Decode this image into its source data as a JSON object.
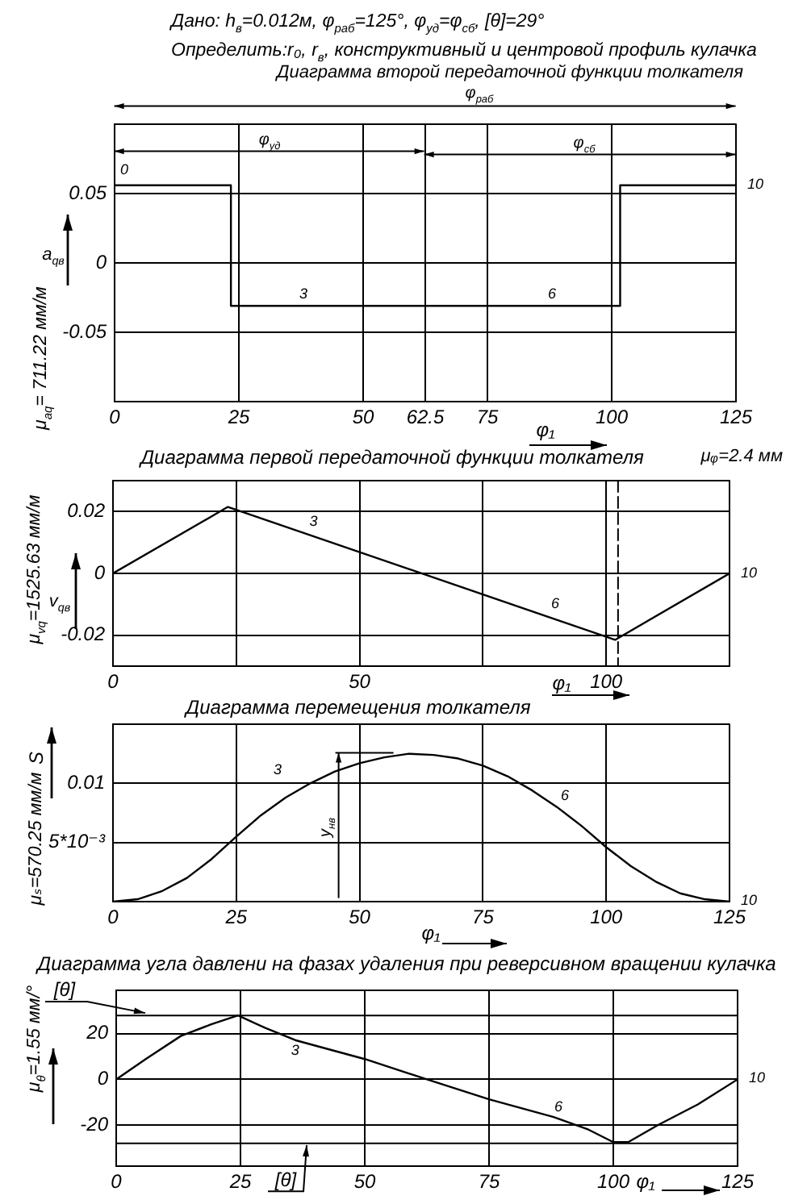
{
  "chart_data": [
    {
      "type": "step",
      "title": "Диаграмма второй передаточной функции толкателя",
      "xlabel": "φ₁",
      "ylabel": "μ$_{aq}$= 711.22 мм/м",
      "x": [
        0,
        23.4,
        101.7,
        125
      ],
      "values": [
        0.056,
        -0.031,
        0.056,
        0.056
      ],
      "color": "#000000",
      "xlim": [
        0,
        125
      ],
      "xticks": [
        0,
        25,
        50,
        62.5,
        75,
        100,
        125
      ],
      "ylim": [
        -0.1,
        0.1
      ],
      "yticks": [
        -0.05,
        0,
        0.05
      ],
      "grid": true,
      "annotations": [
        "Дано: h$_{в}$=0.012м, φ$_{раб}$=125°, φ$_{уд}$=φ$_{сб}$, [θ]=29°",
        "Определить:r₀, r$_{в}$, конструктивный и центровой профиль кулачка",
        "μᵩ=2.4 мм",
        "a$_{qв}$",
        "φ$_{раб}$",
        "φ$_{уд}$",
        "φ$_{сб}$",
        {
          "text": "0",
          "x": 0,
          "y": 0.056
        },
        {
          "text": "3",
          "x": 38,
          "y": -0.031
        },
        {
          "text": "6",
          "x": 88,
          "y": -0.031
        },
        {
          "text": "10",
          "x": 125,
          "y": 0.056
        }
      ]
    },
    {
      "type": "line",
      "title": "Диаграмма первой передаточной функции толкателя",
      "xlabel": "φ₁",
      "ylabel": "μ$_{vq}$=1525.63 мм/м",
      "x": [
        0,
        23.3,
        101.8,
        125
      ],
      "values": [
        0,
        0.0215,
        -0.0215,
        0
      ],
      "color": "#000000",
      "xlim": [
        0,
        125
      ],
      "xticks": [
        0,
        {
          "value": 25,
          "label": null
        },
        50,
        {
          "value": 75,
          "label": null
        },
        100
      ],
      "ylim": [
        -0.03,
        0.03
      ],
      "yticks": [
        -0.02,
        0,
        0.02
      ],
      "grid": true,
      "ref_lines": [
        {
          "axis": "x",
          "value": 102.4,
          "line_style": "dashed"
        }
      ],
      "annotations": [
        "v$_{qв}$",
        {
          "text": "3",
          "x": 40,
          "y": 0.0124
        },
        {
          "text": "6",
          "x": 89,
          "y": -0.0145
        },
        {
          "text": "10",
          "x": 125,
          "y": 0
        }
      ]
    },
    {
      "type": "line",
      "title": "Диаграмма перемещения толкателя",
      "xlabel": "φ₁",
      "ylabel": "μₛ=570.25 мм/м",
      "x": [
        0,
        5,
        10,
        15,
        20,
        25,
        30,
        35,
        40,
        45,
        50,
        55,
        60,
        65,
        70,
        75,
        80,
        85,
        90,
        95,
        100,
        105,
        110,
        115,
        120,
        125
      ],
      "values": [
        0,
        0.0002,
        0.0009,
        0.002,
        0.0036,
        0.0055,
        0.0073,
        0.0088,
        0.01,
        0.011,
        0.0117,
        0.0122,
        0.0125,
        0.0124,
        0.0121,
        0.0115,
        0.0106,
        0.0094,
        0.008,
        0.0064,
        0.0046,
        0.003,
        0.0017,
        0.0007,
        0.0002,
        0
      ],
      "color": "#000000",
      "xlim": [
        0,
        125
      ],
      "xticks": [
        0,
        25,
        50,
        75,
        100,
        125
      ],
      "ylim": [
        0,
        0.015
      ],
      "yticks": [
        {
          "value": 0.005,
          "label": "5*10⁻³"
        },
        0.01
      ],
      "grid": true,
      "annotations": [
        "S",
        "y$_{нв}$",
        {
          "text": "3",
          "x": 37,
          "y": 0.0093
        },
        {
          "text": "6",
          "x": 90,
          "y": 0.008
        },
        {
          "text": "10",
          "x": 125,
          "y": 0
        }
      ]
    },
    {
      "type": "line",
      "title": "Диаграмма угла давлени на фазах удаления при реверсивном вращении кулачка",
      "xlabel": "φ₁",
      "ylabel": "μ$_{θ}$=1.55 мм/°",
      "x": [
        0,
        6,
        13,
        19,
        24.5,
        30,
        36,
        40,
        50,
        62.5,
        75,
        88,
        95,
        100,
        103,
        109,
        117,
        125
      ],
      "values": [
        0,
        9,
        19,
        24,
        28,
        22.5,
        17.2,
        14.8,
        8.9,
        0,
        -8.7,
        -16.5,
        -22,
        -27.5,
        -27.5,
        -20,
        -11,
        0
      ],
      "color": "#000000",
      "xlim": [
        0,
        125
      ],
      "xticks": [
        0,
        25,
        50,
        75,
        100,
        125
      ],
      "ylim": [
        -38,
        39
      ],
      "yticks": [
        -20,
        0,
        20
      ],
      "grid": true,
      "ref_lines": [
        {
          "axis": "y",
          "value": 28,
          "label": "[θ]"
        },
        {
          "axis": "y",
          "value": -28,
          "label": "[θ]"
        }
      ],
      "annotations": [
        {
          "text": "3",
          "x": 36,
          "y": 17.2
        },
        {
          "text": "6",
          "x": 88,
          "y": -16.5
        },
        {
          "text": "10",
          "x": 125,
          "y": 0
        }
      ]
    }
  ]
}
